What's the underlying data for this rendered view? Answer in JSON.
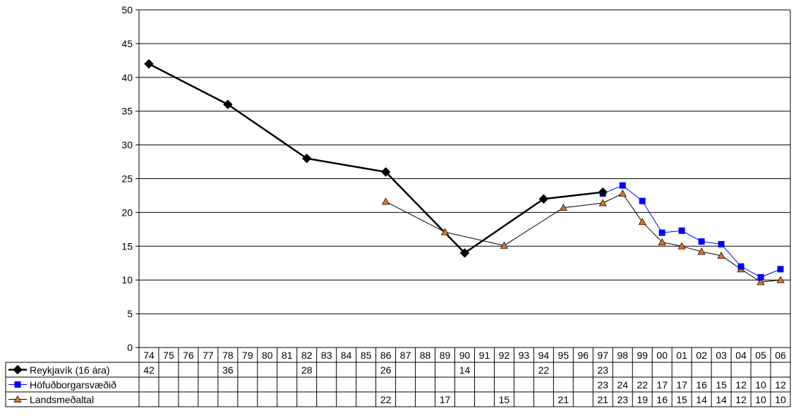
{
  "chart_data": {
    "type": "line",
    "title": "",
    "xlabel": "",
    "ylabel": "",
    "ylim": [
      0,
      50
    ],
    "yticks": [
      0,
      5,
      10,
      15,
      20,
      25,
      30,
      35,
      40,
      45,
      50
    ],
    "grid": "horizontal",
    "legend": "data-table-left",
    "categories": [
      "74",
      "75",
      "76",
      "77",
      "78",
      "79",
      "80",
      "81",
      "82",
      "83",
      "84",
      "85",
      "86",
      "87",
      "88",
      "89",
      "90",
      "91",
      "92",
      "93",
      "94",
      "95",
      "96",
      "97",
      "98",
      "99",
      "00",
      "01",
      "02",
      "03",
      "04",
      "05",
      "06"
    ],
    "series": [
      {
        "name": "Reykjavík (16 ára)",
        "color": "#000000",
        "marker": "diamond",
        "values": [
          42,
          null,
          null,
          null,
          36,
          null,
          null,
          null,
          28,
          null,
          null,
          null,
          26,
          null,
          null,
          null,
          14,
          null,
          null,
          null,
          22,
          null,
          null,
          23,
          null,
          null,
          null,
          null,
          null,
          null,
          null,
          null,
          null
        ],
        "labels": [
          "42",
          "",
          "",
          "",
          "36",
          "",
          "",
          "",
          "28",
          "",
          "",
          "",
          "26",
          "",
          "",
          "",
          "14",
          "",
          "",
          "",
          "22",
          "",
          "",
          "23",
          "",
          "",
          "",
          "",
          "",
          "",
          "",
          "",
          ""
        ]
      },
      {
        "name": "Höfuðborgarsvæðið",
        "color": "#0000ff",
        "marker": "square",
        "values": [
          null,
          null,
          null,
          null,
          null,
          null,
          null,
          null,
          null,
          null,
          null,
          null,
          null,
          null,
          null,
          null,
          null,
          null,
          null,
          null,
          null,
          null,
          null,
          22.8,
          24,
          21.7,
          17,
          17.3,
          15.7,
          15.3,
          12,
          10.4,
          11.6
        ],
        "labels": [
          "",
          "",
          "",
          "",
          "",
          "",
          "",
          "",
          "",
          "",
          "",
          "",
          "",
          "",
          "",
          "",
          "",
          "",
          "",
          "",
          "",
          "",
          "",
          "23",
          "24",
          "22",
          "17",
          "17",
          "16",
          "15",
          "12",
          "10",
          "12"
        ]
      },
      {
        "name": "Landsmeðaltal",
        "color": "#000000",
        "marker_fill": "#e07020",
        "marker": "triangle",
        "values": [
          null,
          null,
          null,
          null,
          null,
          null,
          null,
          null,
          null,
          null,
          null,
          null,
          21.6,
          null,
          null,
          17.1,
          null,
          null,
          15.1,
          null,
          null,
          20.7,
          null,
          21.4,
          22.8,
          18.6,
          15.6,
          15,
          14.2,
          13.6,
          11.6,
          9.7,
          10
        ],
        "labels": [
          "",
          "",
          "",
          "",
          "",
          "",
          "",
          "",
          "",
          "",
          "",
          "",
          "22",
          "",
          "",
          "17",
          "",
          "",
          "15",
          "",
          "",
          "21",
          "",
          "21",
          "23",
          "19",
          "16",
          "15",
          "14",
          "14",
          "12",
          "10",
          "10"
        ]
      }
    ]
  }
}
